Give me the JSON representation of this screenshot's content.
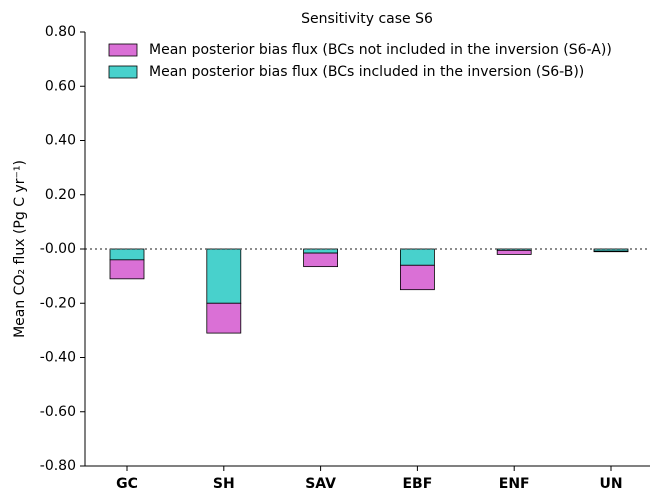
{
  "chart_data": {
    "type": "bar",
    "stacked": true,
    "title": "Sensitivity case S6",
    "y_label": "Mean CO₂ flux (Pg C yr⁻¹)",
    "categories": [
      "GC",
      "SH",
      "SAV",
      "EBF",
      "ENF",
      "UN"
    ],
    "series": [
      {
        "name": "Mean posterior bias flux (BCs not included in the inversion (S6-A))",
        "color": "#da70d6",
        "values": [
          -0.07,
          -0.11,
          -0.05,
          -0.09,
          -0.015,
          -0.002
        ]
      },
      {
        "name": "Mean posterior bias flux (BCs included in the inversion (S6-B))",
        "color": "#48d1cc",
        "values": [
          -0.04,
          -0.2,
          -0.015,
          -0.06,
          -0.005,
          -0.008
        ]
      }
    ],
    "stack_order": [
      1,
      0
    ],
    "ylim": [
      -0.8,
      0.8
    ],
    "yticks": [
      {
        "value": -0.8,
        "label": "-0.80"
      },
      {
        "value": -0.6,
        "label": "-0.60"
      },
      {
        "value": -0.4,
        "label": "-0.40"
      },
      {
        "value": -0.2,
        "label": "-0.20"
      },
      {
        "value": 0,
        "label": "-0.00"
      },
      {
        "value": 0.2,
        "label": "0.20"
      },
      {
        "value": 0.4,
        "label": "0.40"
      },
      {
        "value": 0.6,
        "label": "0.60"
      },
      {
        "value": 0.8,
        "label": "0.80"
      }
    ],
    "reference_line": 0,
    "legend": "upper left"
  }
}
